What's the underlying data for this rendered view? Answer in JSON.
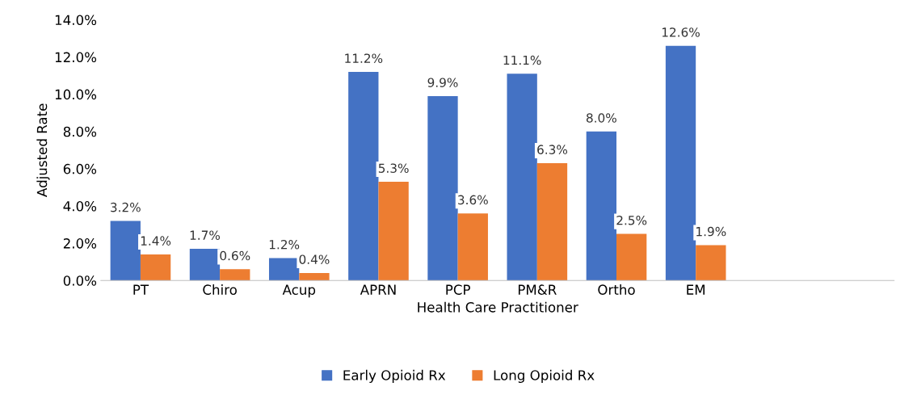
{
  "chart_data": {
    "type": "bar",
    "xlabel": "Health Care Practitioner",
    "ylabel": "Adjusted Rate",
    "categories": [
      "PT",
      "Chiro",
      "Acup",
      "APRN",
      "PCP",
      "PM&R",
      "Ortho",
      "EM",
      null,
      null
    ],
    "series": [
      {
        "name": "Early Opioid Rx",
        "color": "#4472c4",
        "values": [
          3.2,
          1.7,
          1.2,
          11.2,
          9.9,
          11.1,
          8.0,
          12.6,
          null,
          null
        ],
        "value_labels": [
          "3.2%",
          "1.7%",
          "1.2%",
          "11.2%",
          "9.9%",
          "11.1%",
          "8.0%",
          "12.6%",
          null,
          null
        ]
      },
      {
        "name": "Long Opioid Rx",
        "color": "#ed7d31",
        "values": [
          1.4,
          0.6,
          0.4,
          5.3,
          3.6,
          6.3,
          2.5,
          1.9,
          null,
          null
        ],
        "value_labels": [
          "1.4%",
          "0.6%",
          "0.4%",
          "5.3%",
          "3.6%",
          "6.3%",
          "2.5%",
          "1.9%",
          null,
          null
        ]
      }
    ],
    "ylim": [
      0,
      14
    ],
    "yticks": [
      {
        "value": 0,
        "label": "0.0%"
      },
      {
        "value": 2,
        "label": "2.0%"
      },
      {
        "value": 4,
        "label": "4.0%"
      },
      {
        "value": 6,
        "label": "6.0%"
      },
      {
        "value": 8,
        "label": "8.0%"
      },
      {
        "value": 10,
        "label": "10.0%"
      },
      {
        "value": 12,
        "label": "12.0%"
      },
      {
        "value": 14,
        "label": "14.0%"
      }
    ],
    "grid": false,
    "legend": "bottom"
  }
}
